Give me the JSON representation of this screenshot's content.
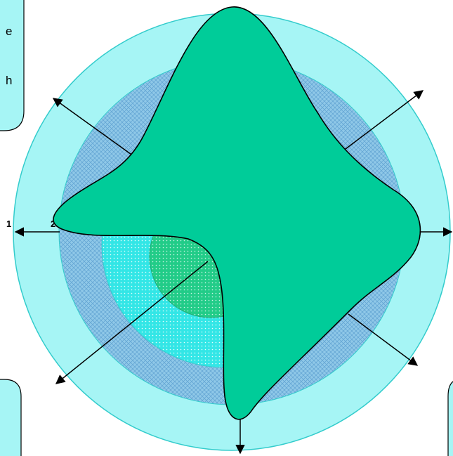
{
  "diagram": {
    "ring_labels": [
      "1",
      "2"
    ],
    "callouts": {
      "top_left": {
        "lines": [
          "e",
          "h"
        ]
      }
    },
    "colors": {
      "outer_ring": "#a6f5f5",
      "outer_ring_stroke": "#33cccc",
      "hatch_ring": "#8fc8e8",
      "hatch_line": "#4a90c8",
      "inner_ring": "#33e6e6",
      "inner_dots": "#ffffff",
      "core": "#22cc88",
      "star_fill": "#00cc99",
      "star_stroke": "#000000",
      "arrow": "#000000",
      "callout_border": "#000000"
    },
    "arrow_directions": [
      "north-west",
      "north-east",
      "west",
      "east",
      "south-west",
      "south-east",
      "south"
    ]
  }
}
